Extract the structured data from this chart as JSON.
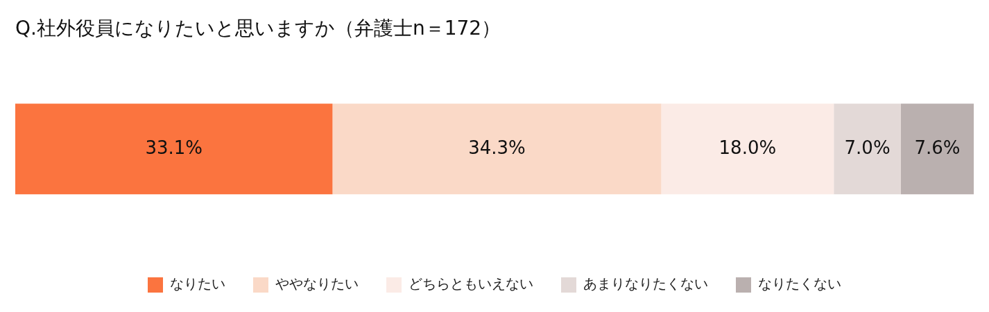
{
  "chart_data": {
    "type": "bar",
    "orientation": "horizontal",
    "stacked": true,
    "title": "Q.社外役員になりたいと思いますか（弁護士n＝172）",
    "categories": [
      null
    ],
    "xlim": [
      0,
      100
    ],
    "grid": false,
    "legend": "bottom",
    "series": [
      {
        "name": "なりたい",
        "color": "#fb743f",
        "values": [
          33.1
        ],
        "value_labels": [
          "33.1%"
        ]
      },
      {
        "name": "ややなりたい",
        "color": "#fad9c7",
        "values": [
          34.3
        ],
        "value_labels": [
          "34.3%"
        ]
      },
      {
        "name": "どちらともいえない",
        "color": "#fbebe6",
        "values": [
          18.0
        ],
        "value_labels": [
          "18.0%"
        ]
      },
      {
        "name": "あまりなりたくない",
        "color": "#e3d9d7",
        "values": [
          7.0
        ],
        "value_labels": [
          "7.0%"
        ]
      },
      {
        "name": "なりたくない",
        "color": "#bab0af",
        "values": [
          7.6
        ],
        "value_labels": [
          "7.6%"
        ]
      }
    ]
  }
}
